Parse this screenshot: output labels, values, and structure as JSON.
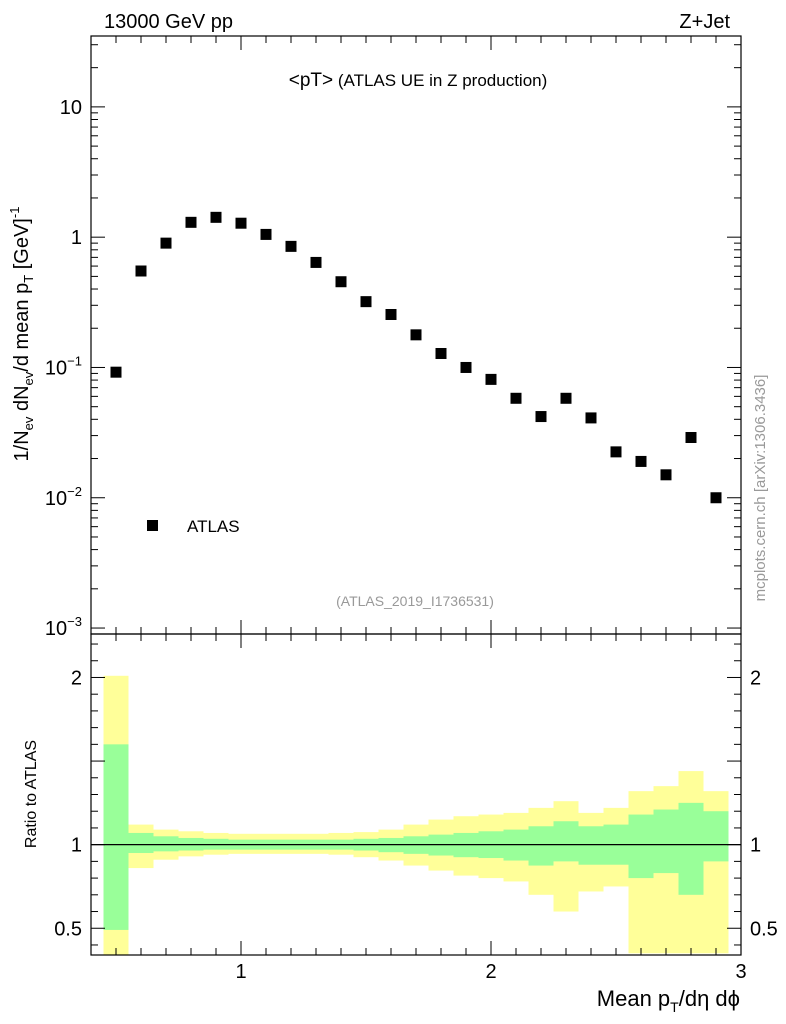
{
  "header": {
    "left": "13000 GeV pp",
    "right": "Z+Jet"
  },
  "plot_title": {
    "main": "<pT>",
    "sub": " (ATLAS UE in Z production)"
  },
  "analysis_id": "(ATLAS_2019_I1736531)",
  "side_label": "mcplots.cern.ch [arXiv:1306.3436]",
  "colors": {
    "band_outer": "#ffff99",
    "band_inner": "#99ff99",
    "marker": "#000000",
    "grey_text": "#999999"
  },
  "chart_data": [
    {
      "type": "scatter",
      "panel": "main",
      "y_scale": "log",
      "xlim": [
        0.4,
        3.0
      ],
      "ylim": [
        0.0009,
        35
      ],
      "xlabel": {
        "base": "Mean p",
        "sub": "T",
        "rest": "/dη dϕ"
      },
      "ylabel": {
        "p1": "1/N",
        "s1": "ev",
        "p2": " dN",
        "s2": "ev",
        "p3": "/d mean p",
        "s3": "T",
        "p4": " [GeV]",
        "sup": "-1"
      },
      "x_tick_labels": [
        {
          "v": 1,
          "label": "1"
        },
        {
          "v": 2,
          "label": "2"
        },
        {
          "v": 3,
          "label": "3"
        }
      ],
      "y_tick_labels": [
        {
          "v": 10,
          "base": "10",
          "exp": ""
        },
        {
          "v": 1,
          "base": "1",
          "exp": ""
        },
        {
          "v": 0.1,
          "base": "10",
          "exp": "−1"
        },
        {
          "v": 0.01,
          "base": "10",
          "exp": "−2"
        },
        {
          "v": 0.001,
          "base": "10",
          "exp": "−3"
        }
      ],
      "legend": {
        "position": "lower-left",
        "label": "ATLAS"
      },
      "series": [
        {
          "name": "ATLAS",
          "x": [
            0.5,
            0.6,
            0.7,
            0.8,
            0.9,
            1.0,
            1.1,
            1.2,
            1.3,
            1.4,
            1.5,
            1.6,
            1.7,
            1.8,
            1.9,
            2.0,
            2.1,
            2.2,
            2.3,
            2.4,
            2.5,
            2.6,
            2.7,
            2.8,
            2.9
          ],
          "y": [
            0.092,
            0.55,
            0.9,
            1.3,
            1.42,
            1.28,
            1.05,
            0.85,
            0.64,
            0.455,
            0.32,
            0.255,
            0.178,
            0.128,
            0.1,
            0.081,
            0.058,
            0.042,
            0.058,
            0.041,
            0.0225,
            0.019,
            0.015,
            0.029,
            0.01
          ]
        }
      ]
    },
    {
      "type": "area",
      "panel": "ratio",
      "xlim": [
        0.4,
        3.0
      ],
      "ylim": [
        0.34,
        2.26
      ],
      "ylabel": "Ratio to ATLAS",
      "y_tick_labels": [
        {
          "v": 2,
          "label": "2"
        },
        {
          "v": 1,
          "label": "1"
        },
        {
          "v": 0.5,
          "label": "0.5"
        }
      ],
      "bin_edges": [
        0.45,
        0.55,
        0.65,
        0.75,
        0.85,
        0.95,
        1.05,
        1.15,
        1.25,
        1.35,
        1.45,
        1.55,
        1.65,
        1.75,
        1.85,
        1.95,
        2.05,
        2.15,
        2.25,
        2.35,
        2.45,
        2.55,
        2.65,
        2.75,
        2.85,
        2.95
      ],
      "outer_band": {
        "low": [
          0.3,
          0.86,
          0.91,
          0.93,
          0.94,
          0.945,
          0.945,
          0.945,
          0.945,
          0.94,
          0.925,
          0.905,
          0.875,
          0.845,
          0.815,
          0.8,
          0.78,
          0.7,
          0.6,
          0.72,
          0.75,
          0.35,
          0.35,
          0.35,
          0.35,
          0.35
        ],
        "high": [
          2.01,
          1.12,
          1.09,
          1.08,
          1.07,
          1.065,
          1.065,
          1.065,
          1.065,
          1.07,
          1.075,
          1.09,
          1.12,
          1.15,
          1.17,
          1.18,
          1.19,
          1.22,
          1.26,
          1.19,
          1.22,
          1.32,
          1.35,
          1.44,
          1.32,
          2.16
        ]
      },
      "inner_band": {
        "low": [
          0.49,
          0.95,
          0.96,
          0.965,
          0.97,
          0.97,
          0.97,
          0.97,
          0.97,
          0.97,
          0.965,
          0.955,
          0.945,
          0.935,
          0.925,
          0.92,
          0.905,
          0.875,
          0.9,
          0.88,
          0.88,
          0.8,
          0.83,
          0.7,
          0.9,
          0.35
        ],
        "high": [
          1.6,
          1.07,
          1.05,
          1.04,
          1.035,
          1.03,
          1.03,
          1.03,
          1.03,
          1.03,
          1.035,
          1.04,
          1.05,
          1.06,
          1.07,
          1.08,
          1.09,
          1.11,
          1.14,
          1.11,
          1.12,
          1.18,
          1.21,
          1.25,
          1.2,
          1.67
        ]
      },
      "reference_line": 1
    }
  ]
}
